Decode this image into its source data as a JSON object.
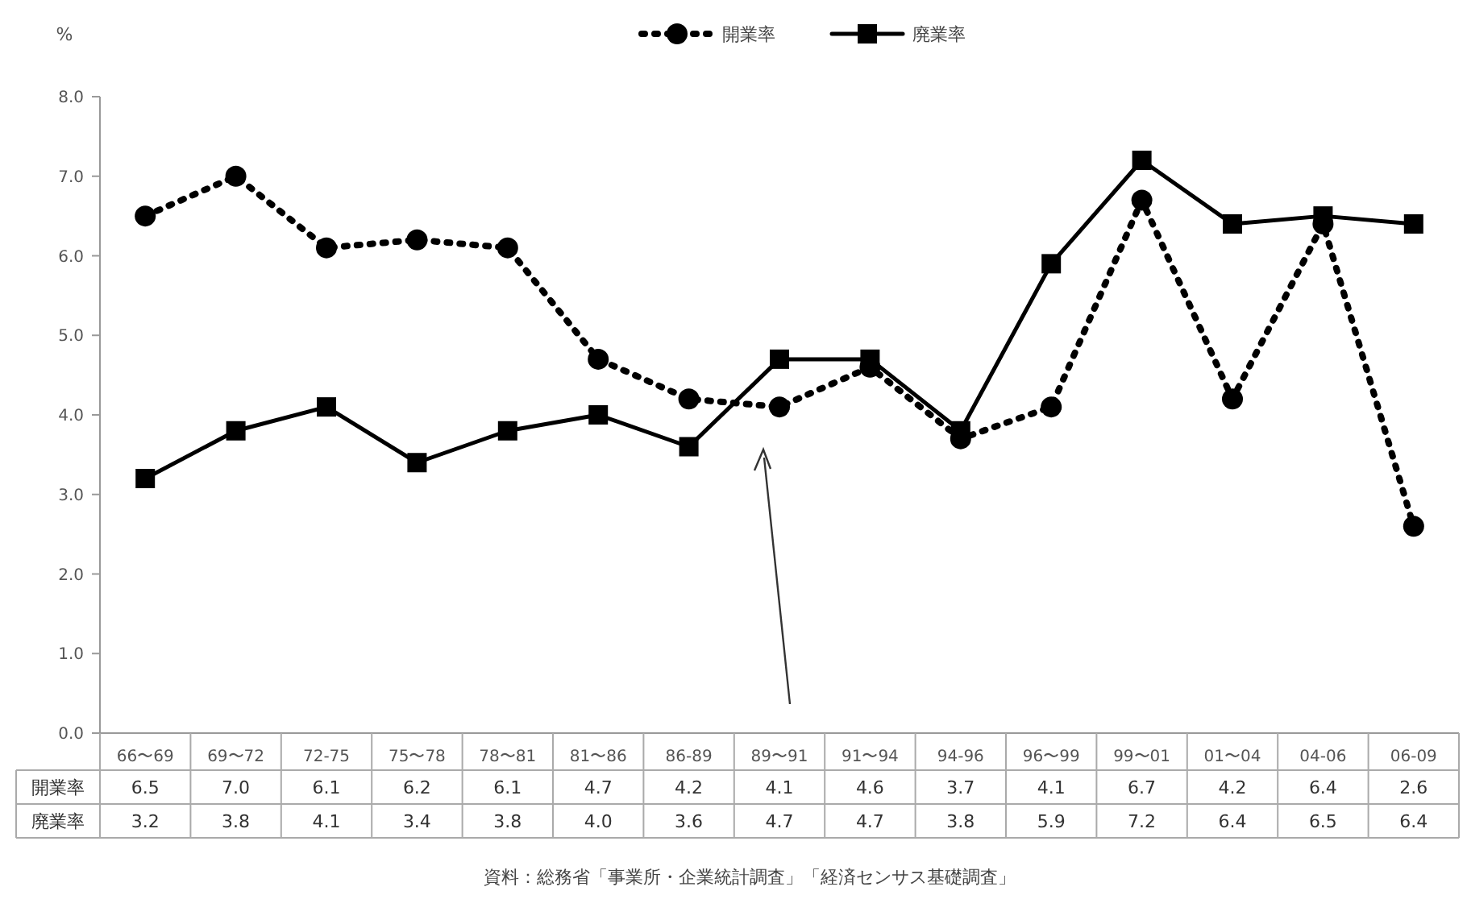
{
  "chart_data": {
    "type": "line",
    "ylabel": "%",
    "categories": [
      "66〜69",
      "69〜72",
      "72-75",
      "75〜78",
      "78〜81",
      "81〜86",
      "86-89",
      "89〜91",
      "91〜94",
      "94-96",
      "96〜99",
      "99〜01",
      "01〜04",
      "04-06",
      "06-09"
    ],
    "series": [
      {
        "name": "開業率",
        "color": "#000000",
        "line_style": "dotted",
        "marker": "circle",
        "values": [
          6.5,
          7.0,
          6.1,
          6.2,
          6.1,
          4.7,
          4.2,
          4.1,
          4.6,
          3.7,
          4.1,
          6.7,
          4.2,
          6.4,
          2.6
        ],
        "value_labels": [
          "6.5",
          "7.0",
          "6.1",
          "6.2",
          "6.1",
          "4.7",
          "4.2",
          "4.1",
          "4.6",
          "3.7",
          "4.1",
          "6.7",
          "4.2",
          "6.4",
          "2.6"
        ]
      },
      {
        "name": "廃業率",
        "color": "#000000",
        "line_style": "solid",
        "marker": "square",
        "values": [
          3.2,
          3.8,
          4.1,
          3.4,
          3.8,
          4.0,
          3.6,
          4.7,
          4.7,
          3.8,
          5.9,
          7.2,
          6.4,
          6.5,
          6.4
        ],
        "value_labels": [
          "3.2",
          "3.8",
          "4.1",
          "3.4",
          "3.8",
          "4.0",
          "3.6",
          "4.7",
          "4.7",
          "3.8",
          "5.9",
          "7.2",
          "6.4",
          "6.5",
          "6.4"
        ]
      }
    ],
    "ylim": [
      0,
      8
    ],
    "yticks": [
      {
        "value": 0,
        "label": "0.0"
      },
      {
        "value": 1,
        "label": "1.0"
      },
      {
        "value": 2,
        "label": "2.0"
      },
      {
        "value": 3,
        "label": "3.0"
      },
      {
        "value": 4,
        "label": "4.0"
      },
      {
        "value": 5,
        "label": "5.0"
      },
      {
        "value": 6,
        "label": "6.0"
      },
      {
        "value": 7,
        "label": "7.0"
      },
      {
        "value": 8,
        "label": "8.0"
      }
    ],
    "legend": "top",
    "annotations": [
      "資料：総務省「事業所・企業統計調査」「経済センサス基礎調査」"
    ]
  }
}
